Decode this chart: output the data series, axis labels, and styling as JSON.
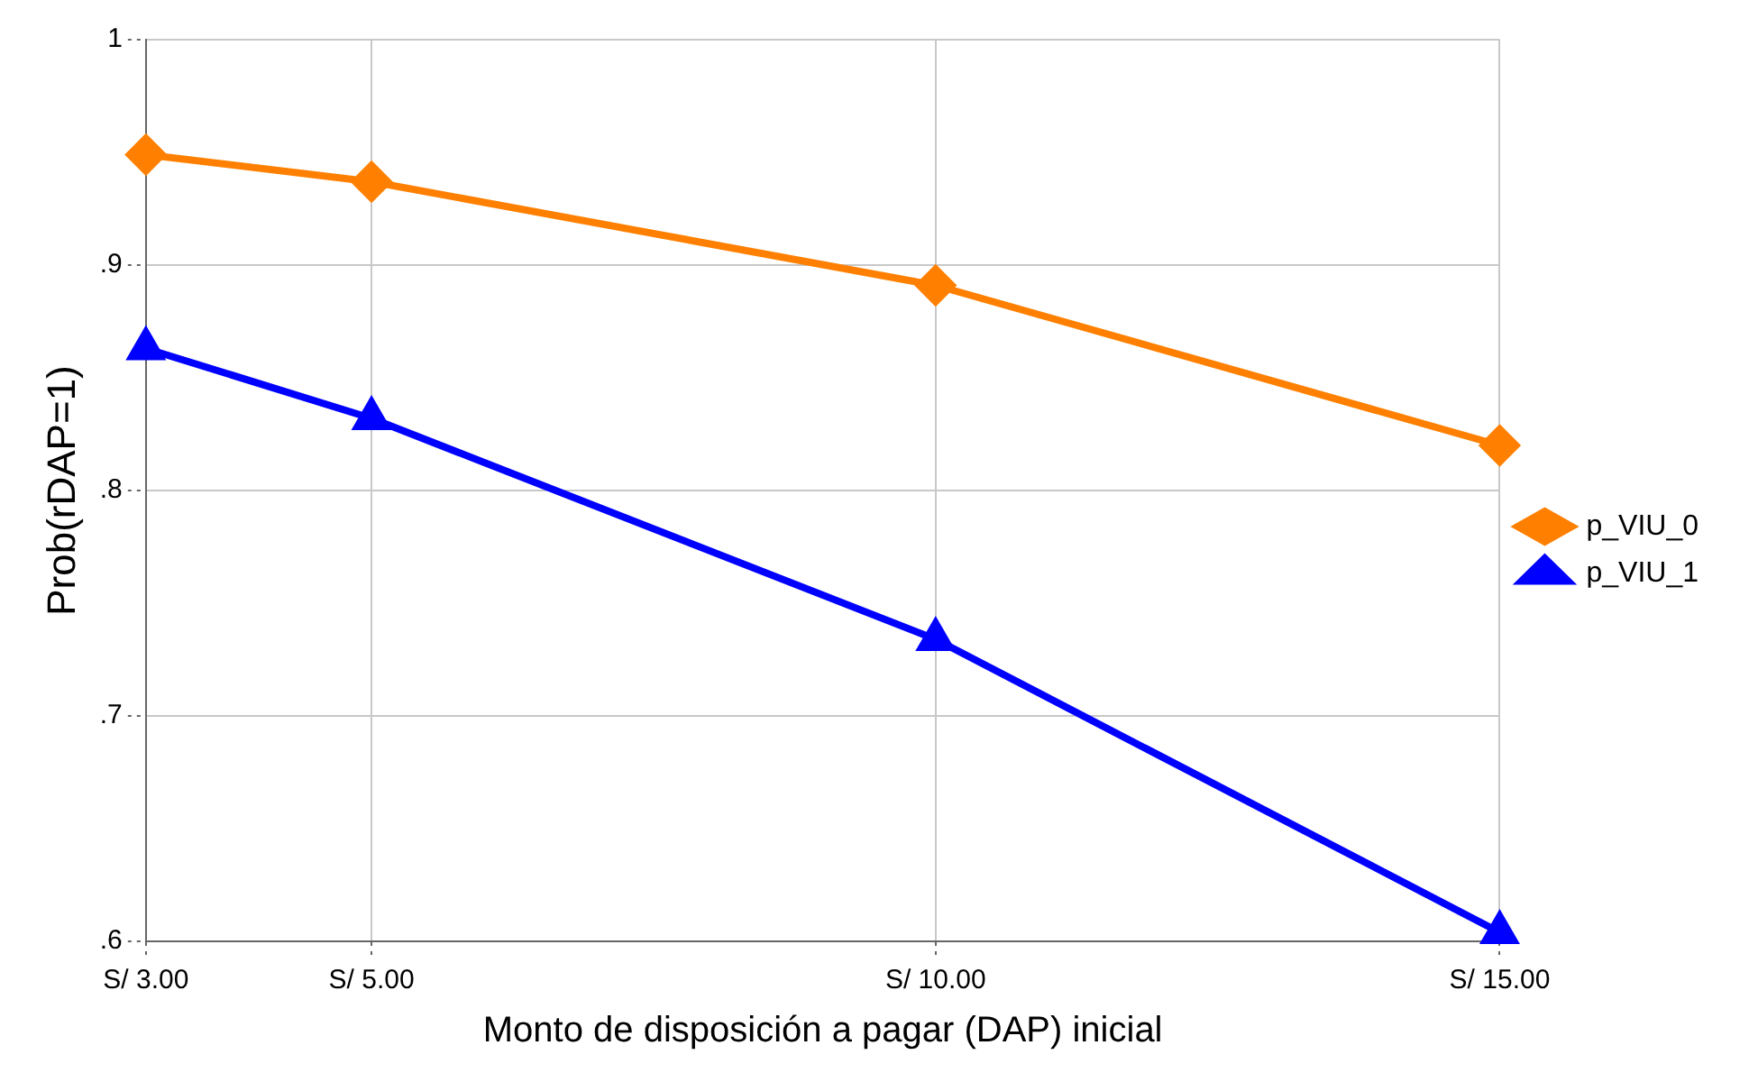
{
  "chart_data": {
    "type": "line",
    "xlabel": "Monto de disposición a pagar (DAP) inicial",
    "ylabel": "Prob(rDAP=1)",
    "x": [
      3,
      5,
      10,
      15
    ],
    "series": [
      {
        "name": "p_VIU_0",
        "color": "#ff8000",
        "marker": "diamond",
        "values": [
          0.949,
          0.937,
          0.891,
          0.82
        ]
      },
      {
        "name": "p_VIU_1",
        "color": "#0000ff",
        "marker": "triangle",
        "values": [
          0.863,
          0.832,
          0.734,
          0.604
        ]
      }
    ],
    "xlim": [
      3,
      15
    ],
    "xticks": [
      {
        "value": 3,
        "label": "S/ 3.00"
      },
      {
        "value": 5,
        "label": "S/ 5.00"
      },
      {
        "value": 10,
        "label": "S/ 10.00"
      },
      {
        "value": 15,
        "label": "S/ 15.00"
      }
    ],
    "ylim": [
      0.6,
      1
    ],
    "yticks": [
      {
        "value": 0.6,
        "label": ".6"
      },
      {
        "value": 0.7,
        "label": ".7"
      },
      {
        "value": 0.8,
        "label": ".8"
      },
      {
        "value": 0.9,
        "label": ".9"
      },
      1
    ],
    "grid": true,
    "legend": "right",
    "line_style": "solid"
  }
}
